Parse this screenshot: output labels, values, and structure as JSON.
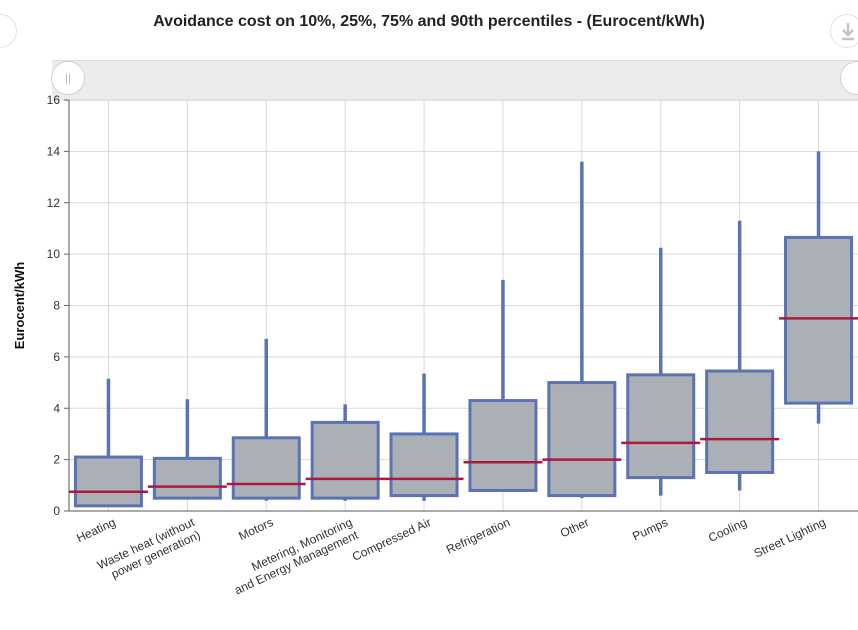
{
  "chart_data": {
    "type": "box",
    "title": "Avoidance cost on 10%, 25%, 75% and 90th percentiles - (Eurocent/kWh)",
    "xlabel": "",
    "ylabel": "Eurocent/kWh",
    "ylim": [
      0,
      16
    ],
    "yticks": [
      "0",
      "2",
      "4",
      "6",
      "8",
      "10",
      "12",
      "14",
      "16"
    ],
    "grid": true,
    "categories": [
      "Heating",
      "Waste heat (without power generation)",
      "Motors",
      "Metering, Monitoring and Energy Management",
      "Compressed Air",
      "Refrigeration",
      "Other",
      "Pumps",
      "Cooling",
      "Street Lighting"
    ],
    "series": [
      {
        "p10": [
          0.2,
          0.5,
          0.4,
          0.4,
          0.4,
          0.8,
          0.5,
          0.6,
          0.8,
          3.4
        ],
        "p25": [
          0.2,
          0.5,
          0.5,
          0.5,
          0.6,
          0.8,
          0.6,
          1.3,
          1.5,
          4.2
        ],
        "median": [
          0.75,
          0.95,
          1.05,
          1.25,
          1.25,
          1.9,
          2.0,
          2.65,
          2.8,
          7.5
        ],
        "p75": [
          2.1,
          2.05,
          2.85,
          3.45,
          3.0,
          4.3,
          5.0,
          5.3,
          5.45,
          10.65
        ],
        "p90": [
          5.15,
          4.35,
          6.7,
          4.15,
          5.35,
          9.0,
          13.6,
          10.25,
          11.3,
          14.0
        ]
      }
    ],
    "colors": {
      "box_fill": "#abb0b7",
      "box_stroke": "#5b72b4",
      "median": "#b0173a",
      "grid": "#d9d9d9"
    }
  },
  "controls": {
    "download_icon": "download-icon",
    "left_handle_glyph": "||"
  }
}
